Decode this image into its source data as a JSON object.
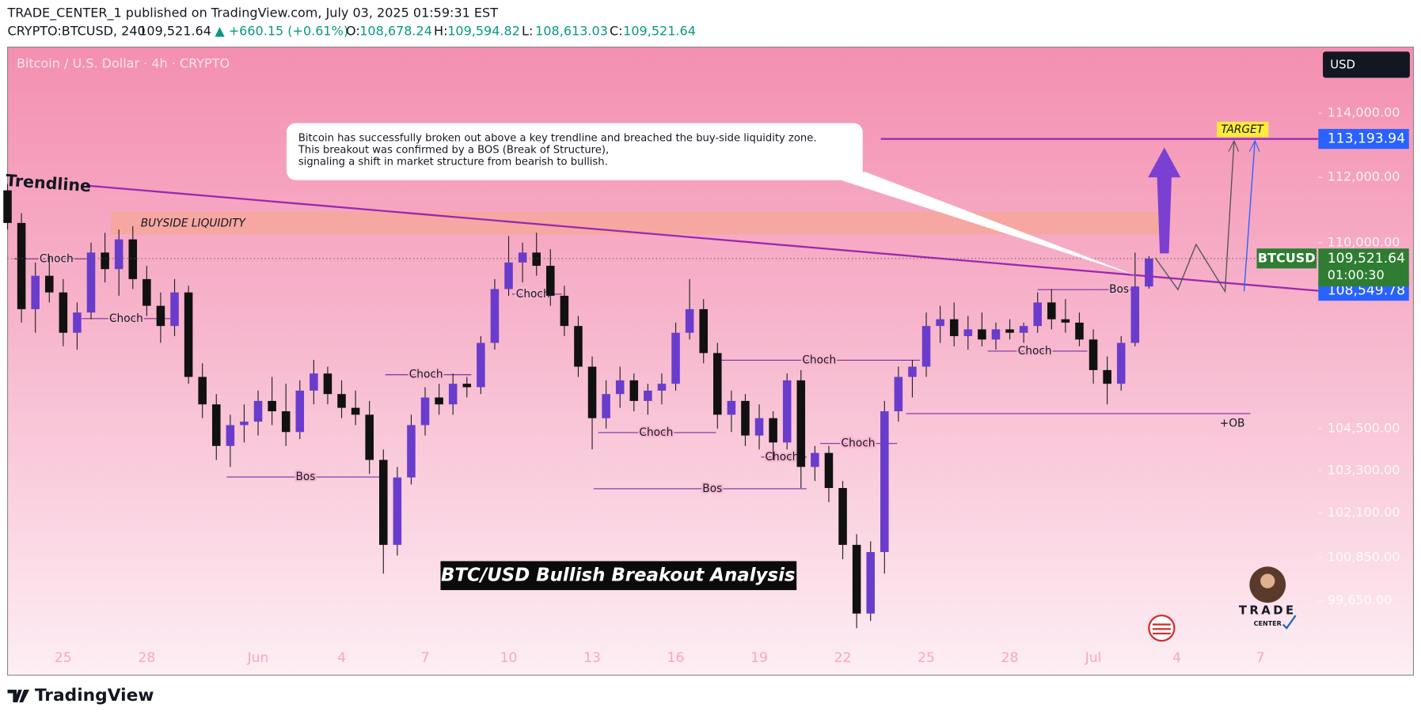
{
  "header": {
    "publisher": "TRADE_CENTER_1 published on TradingView.com, July 03, 2025 01:59:31 EST",
    "symbol": "CRYPTO:BTCUSD, 240",
    "last": "109,521.64",
    "change": "▲ +660.15 (+0.61%)",
    "ohlc": [
      {
        "label": "O:",
        "value": "108,678.24"
      },
      {
        "label": "H:",
        "value": "109,594.82"
      },
      {
        "label": "L:",
        "value": "108,613.03"
      },
      {
        "label": "C:",
        "value": "109,521.64"
      }
    ]
  },
  "chart_data": {
    "type": "candlestick",
    "watermark": "Bitcoin / U.S. Dollar · 4h · CRYPTO",
    "currency": "USD",
    "log_scale": true,
    "grid": false,
    "up_color": "#6a3ccc",
    "down_color": "#111111",
    "xlim": [
      "2025-05-23T00:00",
      "2025-07-09T02:00"
    ],
    "ylim": [
      97650,
      116100
    ],
    "yticks": [
      {
        "value": 114000,
        "label": "114,000.00"
      },
      {
        "value": 112000,
        "label": "112,000.00"
      },
      {
        "value": 110000,
        "label": "110,000.00"
      },
      {
        "value": 104500,
        "label": "104,500.00"
      },
      {
        "value": 103300,
        "label": "103,300.00"
      },
      {
        "value": 102100,
        "label": "102,100.00"
      },
      {
        "value": 100850,
        "label": "100,850.00"
      },
      {
        "value": 99650,
        "label": "99,650.00"
      }
    ],
    "xticks": [
      {
        "value": "2025-05-25T00:00",
        "label": "25"
      },
      {
        "value": "2025-05-28T00:00",
        "label": "28"
      },
      {
        "value": "2025-06-01T00:00",
        "label": "Jun"
      },
      {
        "value": "2025-06-04T00:00",
        "label": "4"
      },
      {
        "value": "2025-06-07T00:00",
        "label": "7"
      },
      {
        "value": "2025-06-10T00:00",
        "label": "10"
      },
      {
        "value": "2025-06-13T00:00",
        "label": "13"
      },
      {
        "value": "2025-06-16T00:00",
        "label": "16"
      },
      {
        "value": "2025-06-19T00:00",
        "label": "19"
      },
      {
        "value": "2025-06-22T00:00",
        "label": "22"
      },
      {
        "value": "2025-06-25T00:00",
        "label": "25"
      },
      {
        "value": "2025-06-28T00:00",
        "label": "28"
      },
      {
        "value": "2025-07-01T00:00",
        "label": "Jul"
      },
      {
        "value": "2025-07-04T00:00",
        "label": "4"
      },
      {
        "value": "2025-07-07T00:00",
        "label": "7"
      }
    ],
    "x": [
      "2025-05-23T00:00",
      "2025-05-23T12:00",
      "2025-05-24T00:00",
      "2025-05-24T12:00",
      "2025-05-25T00:00",
      "2025-05-25T12:00",
      "2025-05-26T00:00",
      "2025-05-26T12:00",
      "2025-05-27T00:00",
      "2025-05-27T12:00",
      "2025-05-28T00:00",
      "2025-05-28T12:00",
      "2025-05-29T00:00",
      "2025-05-29T12:00",
      "2025-05-30T00:00",
      "2025-05-30T12:00",
      "2025-05-31T00:00",
      "2025-05-31T12:00",
      "2025-06-01T00:00",
      "2025-06-01T12:00",
      "2025-06-02T00:00",
      "2025-06-02T12:00",
      "2025-06-03T00:00",
      "2025-06-03T12:00",
      "2025-06-04T00:00",
      "2025-06-04T12:00",
      "2025-06-05T00:00",
      "2025-06-05T12:00",
      "2025-06-06T00:00",
      "2025-06-06T12:00",
      "2025-06-07T00:00",
      "2025-06-07T12:00",
      "2025-06-08T00:00",
      "2025-06-08T12:00",
      "2025-06-09T00:00",
      "2025-06-09T12:00",
      "2025-06-10T00:00",
      "2025-06-10T12:00",
      "2025-06-11T00:00",
      "2025-06-11T12:00",
      "2025-06-12T00:00",
      "2025-06-12T12:00",
      "2025-06-13T00:00",
      "2025-06-13T12:00",
      "2025-06-14T00:00",
      "2025-06-14T12:00",
      "2025-06-15T00:00",
      "2025-06-15T12:00",
      "2025-06-16T00:00",
      "2025-06-16T12:00",
      "2025-06-17T00:00",
      "2025-06-17T12:00",
      "2025-06-18T00:00",
      "2025-06-18T12:00",
      "2025-06-19T00:00",
      "2025-06-19T12:00",
      "2025-06-20T00:00",
      "2025-06-20T12:00",
      "2025-06-21T00:00",
      "2025-06-21T12:00",
      "2025-06-22T00:00",
      "2025-06-22T12:00",
      "2025-06-23T00:00",
      "2025-06-23T12:00",
      "2025-06-24T00:00",
      "2025-06-24T12:00",
      "2025-06-25T00:00",
      "2025-06-25T12:00",
      "2025-06-26T00:00",
      "2025-06-26T12:00",
      "2025-06-27T00:00",
      "2025-06-27T12:00",
      "2025-06-28T00:00",
      "2025-06-28T12:00",
      "2025-06-29T00:00",
      "2025-06-29T12:00",
      "2025-06-30T00:00",
      "2025-06-30T12:00",
      "2025-07-01T00:00",
      "2025-07-01T12:00",
      "2025-07-02T00:00",
      "2025-07-02T12:00",
      "2025-07-03T00:00"
    ],
    "ohlc": [
      [
        111600,
        111800,
        110400,
        110600
      ],
      [
        110600,
        110900,
        107600,
        108000
      ],
      [
        108000,
        109400,
        107300,
        109000
      ],
      [
        109000,
        109600,
        108200,
        108500
      ],
      [
        108500,
        108900,
        106900,
        107300
      ],
      [
        107300,
        108200,
        106800,
        107900
      ],
      [
        107900,
        110000,
        107700,
        109700
      ],
      [
        109700,
        110300,
        108800,
        109200
      ],
      [
        109200,
        110400,
        108400,
        110100
      ],
      [
        110100,
        110500,
        108600,
        108900
      ],
      [
        108900,
        109300,
        107800,
        108100
      ],
      [
        108100,
        108500,
        107000,
        107500
      ],
      [
        107500,
        108900,
        107200,
        108500
      ],
      [
        108500,
        108700,
        105800,
        106000
      ],
      [
        106000,
        106400,
        104800,
        105200
      ],
      [
        105200,
        105500,
        103600,
        104000
      ],
      [
        104000,
        104900,
        103400,
        104600
      ],
      [
        104600,
        105200,
        104100,
        104700
      ],
      [
        104700,
        105600,
        104300,
        105300
      ],
      [
        105300,
        106000,
        104600,
        105000
      ],
      [
        105000,
        105800,
        104000,
        104400
      ],
      [
        104400,
        105900,
        104200,
        105600
      ],
      [
        105600,
        106500,
        105200,
        106100
      ],
      [
        106100,
        106300,
        105200,
        105500
      ],
      [
        105500,
        105900,
        104800,
        105100
      ],
      [
        105100,
        105600,
        104600,
        104900
      ],
      [
        104900,
        105300,
        103200,
        103600
      ],
      [
        103600,
        103900,
        100400,
        101200
      ],
      [
        101200,
        103400,
        100900,
        103100
      ],
      [
        103100,
        104900,
        102900,
        104600
      ],
      [
        104600,
        105700,
        104300,
        105400
      ],
      [
        105400,
        105800,
        104900,
        105200
      ],
      [
        105200,
        106100,
        104900,
        105800
      ],
      [
        105800,
        106000,
        105400,
        105700
      ],
      [
        105700,
        107200,
        105500,
        107000
      ],
      [
        107000,
        108900,
        106800,
        108600
      ],
      [
        108600,
        110200,
        108400,
        109400
      ],
      [
        109400,
        110000,
        108800,
        109700
      ],
      [
        109700,
        110300,
        109000,
        109300
      ],
      [
        109300,
        109800,
        108100,
        108400
      ],
      [
        108400,
        108700,
        107200,
        107500
      ],
      [
        107500,
        107800,
        106000,
        106300
      ],
      [
        106300,
        106600,
        103900,
        104800
      ],
      [
        104800,
        105900,
        104500,
        105500
      ],
      [
        105500,
        106300,
        105100,
        105900
      ],
      [
        105900,
        106100,
        105000,
        105300
      ],
      [
        105300,
        105800,
        104900,
        105600
      ],
      [
        105600,
        106100,
        105200,
        105800
      ],
      [
        105800,
        107600,
        105600,
        107300
      ],
      [
        107300,
        108900,
        107100,
        108000
      ],
      [
        108000,
        108300,
        106400,
        106700
      ],
      [
        106700,
        107000,
        104500,
        104900
      ],
      [
        104900,
        105600,
        104400,
        105300
      ],
      [
        105300,
        105500,
        104000,
        104300
      ],
      [
        104300,
        105200,
        103900,
        104800
      ],
      [
        104800,
        105000,
        103600,
        104100
      ],
      [
        104100,
        106100,
        103900,
        105900
      ],
      [
        105900,
        106200,
        102800,
        103400
      ],
      [
        103400,
        104000,
        103000,
        103800
      ],
      [
        103800,
        104000,
        102400,
        102800
      ],
      [
        102800,
        103000,
        100800,
        101200
      ],
      [
        101200,
        101500,
        98900,
        99300
      ],
      [
        99300,
        101300,
        99100,
        101000
      ],
      [
        101000,
        105300,
        100400,
        105000
      ],
      [
        105000,
        106300,
        104700,
        106000
      ],
      [
        106000,
        106500,
        105400,
        106300
      ],
      [
        106300,
        107900,
        106000,
        107500
      ],
      [
        107500,
        108100,
        107000,
        107700
      ],
      [
        107700,
        108200,
        106900,
        107200
      ],
      [
        107200,
        107800,
        106800,
        107400
      ],
      [
        107400,
        107900,
        106900,
        107100
      ],
      [
        107100,
        107600,
        106800,
        107400
      ],
      [
        107400,
        107700,
        107100,
        107300
      ],
      [
        107300,
        107600,
        107000,
        107500
      ],
      [
        107500,
        108500,
        107300,
        108200
      ],
      [
        108200,
        108600,
        107400,
        107700
      ],
      [
        107700,
        108300,
        107300,
        107600
      ],
      [
        107600,
        107900,
        106900,
        107100
      ],
      [
        107100,
        107400,
        105800,
        106200
      ],
      [
        106200,
        106600,
        105200,
        105800
      ],
      [
        105800,
        107200,
        105600,
        107000
      ],
      [
        107000,
        109700,
        106900,
        108678.24
      ],
      [
        108678.24,
        109594.82,
        108613.03,
        109521.64
      ]
    ],
    "last_tag": {
      "symbol": "BTCUSD",
      "price": "109,521.64",
      "countdown": "01:00:30"
    },
    "target": {
      "value": 113193.94,
      "label": "113,193.94",
      "text": "TARGET"
    },
    "trendline": {
      "value": 108549.78,
      "label": "108,549.78",
      "text": "Trendline"
    },
    "zone_label": "BUYSIDE LIQUIDITY",
    "callout": [
      "Bitcoin has successfully broken out above a key trendline and breached the buy-side liquidity zone.",
      "This breakout was confirmed by a BOS (Break of Structure),",
      " signaling a shift in market structure from bearish to bullish."
    ],
    "structure_labels": [
      "Choch",
      "Choch",
      "Choch",
      "Choch",
      "Choch",
      "Choch",
      "Choch",
      "Choch",
      "Choch",
      "Bos",
      "Bos",
      "Bos"
    ],
    "ob_label": "+OB",
    "banner": "BTC/USD Bullish Breakout Analysis",
    "logo": [
      "TRADE",
      "CENTER"
    ]
  },
  "footer": {
    "brand": "TradingView"
  }
}
